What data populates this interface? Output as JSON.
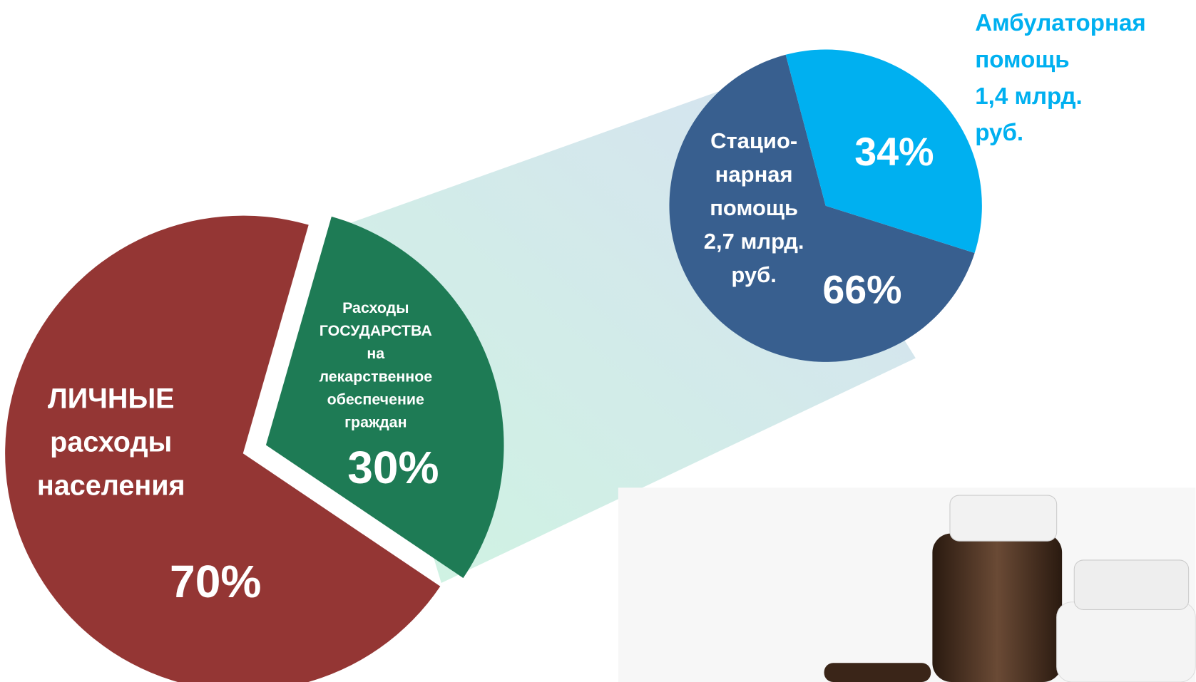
{
  "chart_data": [
    {
      "type": "pie",
      "categories": [
        "ЛИЧНЫЕ\nрасходы\nнаселения",
        "Расходы\nГОСУДАРСТВА\nна\nлекарственное\nобеспечение\nграждан"
      ],
      "values": [
        70,
        30
      ],
      "value_labels": [
        "70%",
        "30%"
      ],
      "colors": [
        "#943634",
        "#1e7b55"
      ]
    },
    {
      "type": "pie",
      "categories": [
        "Стацио-\nнарная\nпомощь\n2,7 млрд.\nруб.",
        "Амбулаторная\nпомощь\n1,4 млрд.\nруб."
      ],
      "values": [
        66,
        34
      ],
      "value_labels": [
        "66%",
        "34%"
      ],
      "colors": [
        "#385f8f",
        "#00b0f0"
      ]
    }
  ]
}
